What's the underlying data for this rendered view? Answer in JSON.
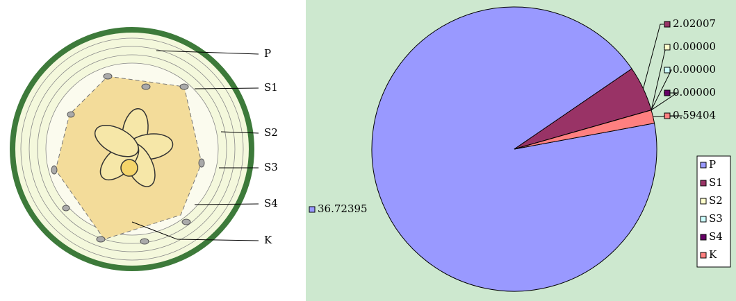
{
  "diagram": {
    "labels": [
      "P",
      "S1",
      "S2",
      "S3",
      "S4",
      "K"
    ]
  },
  "chart_data": {
    "type": "pie",
    "categories": [
      "P",
      "S1",
      "S2",
      "S3",
      "S4",
      "K"
    ],
    "values": [
      36.72395,
      2.02007,
      0,
      0,
      0,
      0.59404
    ],
    "value_labels": [
      "36.72395",
      "2.02007",
      "0.00000",
      "0.00000",
      "0.00000",
      "0.59404"
    ],
    "colors": [
      "#9999ff",
      "#993366",
      "#ffffcc",
      "#ccffff",
      "#660066",
      "#ff8080"
    ],
    "legend": "right"
  }
}
